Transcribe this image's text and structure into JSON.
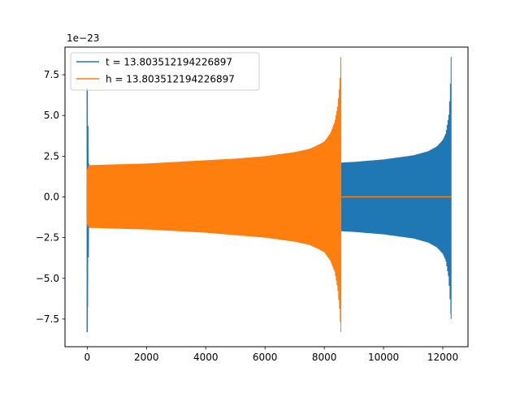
{
  "chart_data": {
    "type": "line",
    "title": "",
    "xlabel": "",
    "ylabel": "",
    "y_offset_label": "1e−23",
    "xlim": [
      -750,
      12850
    ],
    "ylim": [
      -9.2,
      9.2
    ],
    "x_ticks": [
      0,
      2000,
      4000,
      6000,
      8000,
      10000,
      12000
    ],
    "x_tick_labels": [
      "0",
      "2000",
      "4000",
      "6000",
      "8000",
      "10000",
      "12000"
    ],
    "y_ticks": [
      -7.5,
      -5.0,
      -2.5,
      0.0,
      2.5,
      5.0,
      7.5
    ],
    "y_tick_labels": [
      "−7.5",
      "−5.0",
      "−2.5",
      "0.0",
      "2.5",
      "5.0",
      "7.5"
    ],
    "grid": false,
    "legend_position": "top-left",
    "series": [
      {
        "name": "t = 13.803512194226897",
        "color": "#1f77b4",
        "envelope": {
          "x": [
            0,
            60,
            1000,
            2000,
            3000,
            4000,
            5000,
            6000,
            7000,
            8000,
            9000,
            10000,
            11000,
            11500,
            11800,
            12000,
            12100,
            12200,
            12250,
            12280
          ],
          "upper": [
            6.7,
            1.6,
            1.6,
            1.65,
            1.7,
            1.75,
            1.8,
            1.85,
            1.95,
            2.05,
            2.15,
            2.3,
            2.55,
            2.8,
            3.1,
            3.5,
            3.9,
            5.0,
            6.5,
            8.6
          ],
          "lower": [
            -8.3,
            -1.6,
            -1.6,
            -1.65,
            -1.7,
            -1.75,
            -1.8,
            -1.85,
            -1.95,
            -2.05,
            -2.15,
            -2.3,
            -2.55,
            -2.8,
            -3.1,
            -3.5,
            -3.9,
            -5.0,
            -6.5,
            -7.5
          ]
        },
        "zero_after": null
      },
      {
        "name": "h = 13.803512194226897",
        "color": "#ff7f0e",
        "envelope": {
          "x": [
            0,
            60,
            1000,
            2000,
            3000,
            4000,
            5000,
            6000,
            7000,
            7500,
            7800,
            8000,
            8200,
            8350,
            8450,
            8520,
            8560
          ],
          "upper": [
            1.7,
            1.95,
            2.0,
            2.05,
            2.15,
            2.25,
            2.35,
            2.5,
            2.75,
            2.95,
            3.2,
            3.4,
            3.9,
            4.6,
            5.6,
            7.0,
            8.6
          ],
          "lower": [
            -1.7,
            -1.9,
            -1.95,
            -2.0,
            -2.1,
            -2.2,
            -2.35,
            -2.5,
            -2.75,
            -2.95,
            -3.2,
            -3.4,
            -3.9,
            -4.6,
            -5.6,
            -7.0,
            -8.3
          ]
        },
        "zero_after": [
          8560,
          12280
        ]
      }
    ]
  }
}
